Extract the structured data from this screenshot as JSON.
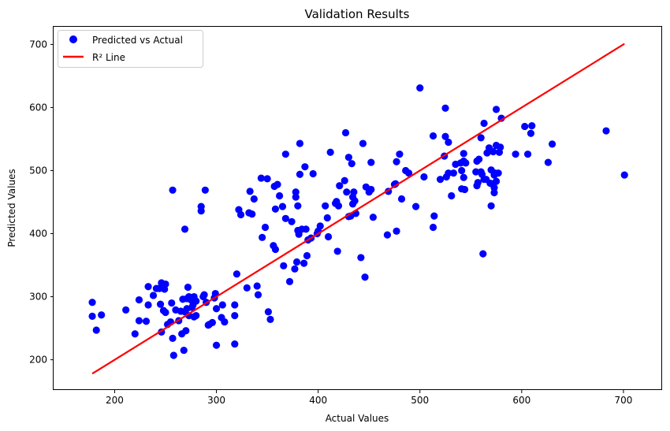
{
  "chart_data": {
    "type": "scatter",
    "title": "Validation Results",
    "xlabel": "Actual Values",
    "ylabel": "Predicted Values",
    "xlim": [
      140,
      738
    ],
    "ylim": [
      152,
      728
    ],
    "xticks": [
      200,
      300,
      400,
      500,
      600,
      700
    ],
    "yticks": [
      200,
      300,
      400,
      500,
      600,
      700
    ],
    "grid": false,
    "legend_position": "top-left",
    "series": [
      {
        "name": "Predicted vs Actual",
        "kind": "scatter",
        "color": "#0000ff",
        "points": [
          [
            178,
            291
          ],
          [
            178,
            269
          ],
          [
            182,
            247
          ],
          [
            187,
            271
          ],
          [
            211,
            279
          ],
          [
            220,
            241
          ],
          [
            224,
            295
          ],
          [
            224,
            262
          ],
          [
            231,
            261
          ],
          [
            233,
            316
          ],
          [
            233,
            287
          ],
          [
            238,
            302
          ],
          [
            241,
            313
          ],
          [
            244,
            313
          ],
          [
            245,
            288
          ],
          [
            246,
            322
          ],
          [
            246,
            244
          ],
          [
            248,
            278
          ],
          [
            249,
            312
          ],
          [
            250,
            320
          ],
          [
            250,
            275
          ],
          [
            252,
            256
          ],
          [
            255,
            260
          ],
          [
            256,
            290
          ],
          [
            257,
            469
          ],
          [
            257,
            234
          ],
          [
            258,
            207
          ],
          [
            260,
            279
          ],
          [
            263,
            262
          ],
          [
            265,
            277
          ],
          [
            266,
            241
          ],
          [
            267,
            296
          ],
          [
            268,
            215
          ],
          [
            269,
            276
          ],
          [
            269,
            407
          ],
          [
            270,
            246
          ],
          [
            271,
            281
          ],
          [
            271,
            297
          ],
          [
            272,
            315
          ],
          [
            273,
            270
          ],
          [
            273,
            300
          ],
          [
            275,
            295
          ],
          [
            276,
            283
          ],
          [
            277,
            287
          ],
          [
            278,
            268
          ],
          [
            278,
            300
          ],
          [
            280,
            270
          ],
          [
            280,
            293
          ],
          [
            285,
            436
          ],
          [
            285,
            443
          ],
          [
            287,
            300
          ],
          [
            288,
            303
          ],
          [
            289,
            469
          ],
          [
            290,
            291
          ],
          [
            292,
            255
          ],
          [
            293,
            256
          ],
          [
            296,
            259
          ],
          [
            298,
            298
          ],
          [
            299,
            305
          ],
          [
            300,
            281
          ],
          [
            300,
            223
          ],
          [
            305,
            267
          ],
          [
            306,
            287
          ],
          [
            308,
            260
          ],
          [
            318,
            225
          ],
          [
            318,
            287
          ],
          [
            318,
            270
          ],
          [
            320,
            336
          ],
          [
            322,
            438
          ],
          [
            324,
            430
          ],
          [
            330,
            314
          ],
          [
            332,
            433
          ],
          [
            333,
            467
          ],
          [
            335,
            431
          ],
          [
            337,
            455
          ],
          [
            340,
            317
          ],
          [
            341,
            303
          ],
          [
            344,
            488
          ],
          [
            345,
            394
          ],
          [
            348,
            410
          ],
          [
            350,
            487
          ],
          [
            351,
            276
          ],
          [
            353,
            264
          ],
          [
            356,
            381
          ],
          [
            357,
            475
          ],
          [
            358,
            375
          ],
          [
            358,
            439
          ],
          [
            360,
            478
          ],
          [
            362,
            460
          ],
          [
            365,
            443
          ],
          [
            366,
            349
          ],
          [
            368,
            526
          ],
          [
            368,
            424
          ],
          [
            372,
            324
          ],
          [
            374,
            419
          ],
          [
            377,
            344
          ],
          [
            378,
            458
          ],
          [
            378,
            466
          ],
          [
            379,
            355
          ],
          [
            380,
            405
          ],
          [
            380,
            444
          ],
          [
            381,
            399
          ],
          [
            382,
            494
          ],
          [
            382,
            543
          ],
          [
            384,
            407
          ],
          [
            386,
            353
          ],
          [
            387,
            506
          ],
          [
            388,
            407
          ],
          [
            389,
            365
          ],
          [
            390,
            390
          ],
          [
            393,
            393
          ],
          [
            395,
            495
          ],
          [
            399,
            400
          ],
          [
            400,
            404
          ],
          [
            402,
            412
          ],
          [
            407,
            444
          ],
          [
            409,
            425
          ],
          [
            410,
            395
          ],
          [
            412,
            529
          ],
          [
            417,
            448
          ],
          [
            418,
            451
          ],
          [
            419,
            372
          ],
          [
            420,
            444
          ],
          [
            421,
            476
          ],
          [
            426,
            484
          ],
          [
            427,
            560
          ],
          [
            428,
            466
          ],
          [
            430,
            427
          ],
          [
            430,
            521
          ],
          [
            432,
            428
          ],
          [
            433,
            511
          ],
          [
            434,
            447
          ],
          [
            434,
            458
          ],
          [
            435,
            466
          ],
          [
            436,
            452
          ],
          [
            437,
            432
          ],
          [
            442,
            362
          ],
          [
            444,
            543
          ],
          [
            446,
            331
          ],
          [
            447,
            474
          ],
          [
            450,
            466
          ],
          [
            452,
            470
          ],
          [
            452,
            513
          ],
          [
            454,
            426
          ],
          [
            468,
            398
          ],
          [
            469,
            467
          ],
          [
            475,
            478
          ],
          [
            476,
            479
          ],
          [
            477,
            404
          ],
          [
            477,
            514
          ],
          [
            480,
            526
          ],
          [
            482,
            455
          ],
          [
            486,
            500
          ],
          [
            489,
            496
          ],
          [
            496,
            443
          ],
          [
            500,
            631
          ],
          [
            504,
            490
          ],
          [
            513,
            410
          ],
          [
            513,
            555
          ],
          [
            514,
            428
          ],
          [
            520,
            486
          ],
          [
            524,
            523
          ],
          [
            525,
            554
          ],
          [
            525,
            599
          ],
          [
            526,
            490
          ],
          [
            528,
            496
          ],
          [
            528,
            545
          ],
          [
            531,
            460
          ],
          [
            533,
            496
          ],
          [
            535,
            510
          ],
          [
            540,
            512
          ],
          [
            541,
            500
          ],
          [
            541,
            471
          ],
          [
            543,
            515
          ],
          [
            543,
            489
          ],
          [
            543,
            527
          ],
          [
            544,
            470
          ],
          [
            545,
            512
          ],
          [
            555,
            498
          ],
          [
            556,
            476
          ],
          [
            556,
            515
          ],
          [
            557,
            481
          ],
          [
            558,
            518
          ],
          [
            560,
            498
          ],
          [
            560,
            552
          ],
          [
            561,
            494
          ],
          [
            562,
            368
          ],
          [
            563,
            575
          ],
          [
            563,
            486
          ],
          [
            565,
            486
          ],
          [
            566,
            528
          ],
          [
            568,
            536
          ],
          [
            569,
            480
          ],
          [
            570,
            501
          ],
          [
            570,
            444
          ],
          [
            572,
            478
          ],
          [
            572,
            530
          ],
          [
            573,
            493
          ],
          [
            573,
            473
          ],
          [
            573,
            465
          ],
          [
            574,
            496
          ],
          [
            575,
            597
          ],
          [
            575,
            483
          ],
          [
            575,
            540
          ],
          [
            577,
            496
          ],
          [
            578,
            529
          ],
          [
            579,
            537
          ],
          [
            580,
            583
          ],
          [
            594,
            526
          ],
          [
            603,
            570
          ],
          [
            606,
            526
          ],
          [
            609,
            559
          ],
          [
            610,
            571
          ],
          [
            626,
            513
          ],
          [
            630,
            542
          ],
          [
            683,
            563
          ],
          [
            701,
            493
          ]
        ]
      },
      {
        "name": "R² Line",
        "kind": "line",
        "color": "#ff0000",
        "points": [
          [
            178,
            178
          ],
          [
            701,
            701
          ]
        ]
      }
    ]
  }
}
